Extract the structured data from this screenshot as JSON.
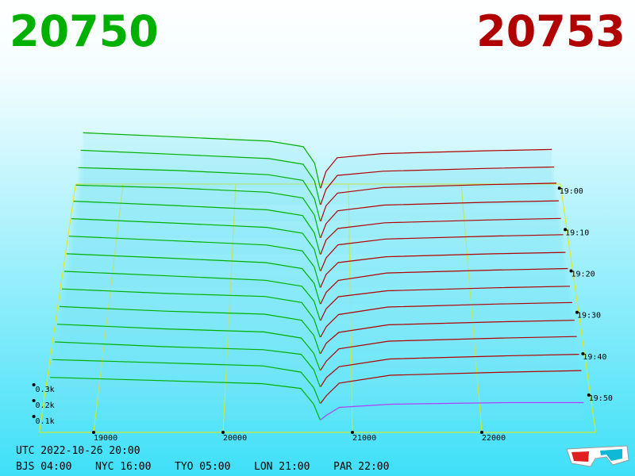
{
  "chart_data": {
    "type": "depth3d",
    "bid": 20750,
    "ask": 20753,
    "bid_color": "#00b000",
    "ask_color": "#b00000",
    "current_color": "#b040ff",
    "grid_color": "#e8e800",
    "xlim": [
      18580,
      22880
    ],
    "xticks": [
      19000,
      20000,
      21000,
      22000
    ],
    "zlim": [
      -1,
      59
    ],
    "zticks": [
      {
        "value": 0,
        "label": "19:00"
      },
      {
        "value": 10,
        "label": "19:10"
      },
      {
        "value": 20,
        "label": "19:20"
      },
      {
        "value": 30,
        "label": "19:30"
      },
      {
        "value": 40,
        "label": "19:40"
      },
      {
        "value": 50,
        "label": "19:50"
      }
    ],
    "yticks": [
      {
        "value": 0.3,
        "label": "0.3k"
      },
      {
        "value": 0.2,
        "label": "0.2k"
      },
      {
        "value": 0.1,
        "label": "0.1k"
      }
    ],
    "slices": {
      "z": [
        0,
        4,
        8,
        12,
        16,
        20,
        24,
        28,
        32,
        36,
        40,
        44,
        48,
        52,
        56
      ],
      "bid_prices": [
        18650,
        19500,
        20300,
        20600,
        20700,
        20750
      ],
      "ask_prices": [
        20753,
        20800,
        20900,
        21300,
        22200,
        22800
      ],
      "bids": [
        [
          0.4,
          0.37,
          0.34,
          0.3,
          0.18,
          0
        ],
        [
          0.39,
          0.36,
          0.33,
          0.29,
          0.17,
          0
        ],
        [
          0.38,
          0.36,
          0.33,
          0.29,
          0.16,
          0
        ],
        [
          0.37,
          0.35,
          0.32,
          0.28,
          0.16,
          0
        ],
        [
          0.37,
          0.34,
          0.31,
          0.27,
          0.15,
          0
        ],
        [
          0.36,
          0.33,
          0.3,
          0.26,
          0.15,
          0
        ],
        [
          0.35,
          0.32,
          0.29,
          0.25,
          0.14,
          0
        ],
        [
          0.34,
          0.31,
          0.28,
          0.24,
          0.14,
          0
        ],
        [
          0.33,
          0.3,
          0.27,
          0.23,
          0.13,
          0
        ],
        [
          0.32,
          0.29,
          0.27,
          0.23,
          0.12,
          0
        ],
        [
          0.31,
          0.28,
          0.26,
          0.22,
          0.12,
          0
        ],
        [
          0.3,
          0.27,
          0.25,
          0.21,
          0.11,
          0
        ],
        [
          0.29,
          0.26,
          0.24,
          0.21,
          0.11,
          0
        ],
        [
          0.28,
          0.26,
          0.24,
          0.2,
          0.1,
          0
        ],
        [
          0.27,
          0.25,
          0.23,
          0.2,
          0.1,
          0
        ]
      ],
      "asks": [
        [
          0,
          0.12,
          0.22,
          0.25,
          0.27,
          0.28
        ],
        [
          0,
          0.11,
          0.21,
          0.24,
          0.26,
          0.27
        ],
        [
          0,
          0.11,
          0.2,
          0.24,
          0.26,
          0.27
        ],
        [
          0,
          0.1,
          0.19,
          0.23,
          0.25,
          0.26
        ],
        [
          0,
          0.1,
          0.18,
          0.22,
          0.24,
          0.25
        ],
        [
          0,
          0.09,
          0.18,
          0.22,
          0.24,
          0.25
        ],
        [
          0,
          0.09,
          0.17,
          0.21,
          0.23,
          0.24
        ],
        [
          0,
          0.08,
          0.16,
          0.21,
          0.23,
          0.24
        ],
        [
          0,
          0.08,
          0.16,
          0.2,
          0.22,
          0.23
        ],
        [
          0,
          0.07,
          0.15,
          0.2,
          0.22,
          0.23
        ],
        [
          0,
          0.07,
          0.14,
          0.19,
          0.21,
          0.22
        ],
        [
          0,
          0.06,
          0.14,
          0.19,
          0.21,
          0.22
        ],
        [
          0,
          0.06,
          0.13,
          0.18,
          0.2,
          0.21
        ],
        [
          0,
          0.05,
          0.13,
          0.18,
          0.2,
          0.21
        ],
        [
          0,
          0.03,
          0.08,
          0.1,
          0.11,
          0.11
        ]
      ]
    }
  },
  "footer": {
    "utc": "UTC 2022-10-26 20:00",
    "cities": [
      "BJS 04:00",
      "NYC 16:00",
      "TYO 05:00",
      "LON 21:00",
      "PAR 22:00"
    ]
  }
}
